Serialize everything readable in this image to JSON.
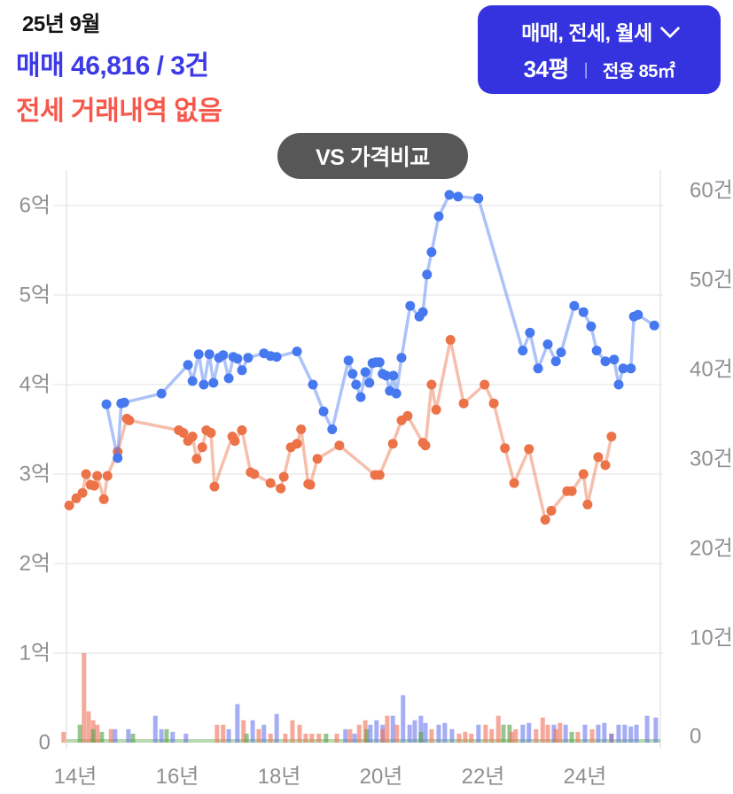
{
  "header": {
    "date": "25년 9월",
    "sale_summary": "매매 46,816 / 3건",
    "jeonse_summary": "전세 거래내역 없음"
  },
  "filter_button": {
    "types_label": "매매, 전세, 월세",
    "pyeong_label": "34평",
    "divider": "ㅣ",
    "exclusive_area_label": "전용 85㎡"
  },
  "compare_button": {
    "label": "VS 가격비교"
  },
  "colors": {
    "sale_accent": "#3c39e6",
    "jeonse_accent": "#f8584c",
    "filter_button_bg": "#3433df",
    "pill_bg": "#575757",
    "grid": "#f0f0f0",
    "axis_text": "#8f8f8f"
  },
  "chart_data": {
    "type": "line+bar",
    "title": "",
    "x_axis": {
      "ticks": [
        [
          2014,
          "14년"
        ],
        [
          2016,
          "16년"
        ],
        [
          2018,
          "18년"
        ],
        [
          2020,
          "20년"
        ],
        [
          2022,
          "22년"
        ],
        [
          2024,
          "24년"
        ]
      ],
      "range": [
        2013.7,
        2025.55
      ]
    },
    "y_left_axis": {
      "unit": "억",
      "ticks": [
        [
          0,
          "0"
        ],
        [
          1,
          "1억"
        ],
        [
          2,
          "2억"
        ],
        [
          3,
          "3억"
        ],
        [
          4,
          "4억"
        ],
        [
          5,
          "5억"
        ],
        [
          6,
          "6억"
        ]
      ],
      "range": [
        0,
        6.4
      ]
    },
    "y_right_axis": {
      "unit": "건",
      "ticks": [
        [
          0,
          "0"
        ],
        [
          10,
          "10건"
        ],
        [
          20,
          "20건"
        ],
        [
          30,
          "30건"
        ],
        [
          40,
          "40건"
        ],
        [
          50,
          "50건"
        ],
        [
          60,
          "60건"
        ]
      ],
      "range": [
        0,
        64
      ]
    },
    "series": [
      {
        "name": "전세",
        "key": "jeonse",
        "unit": "억",
        "marker_color": "#ec7248",
        "line_color": "rgba(236,114,72,0.45)",
        "points": [
          [
            2013.88,
            2.65
          ],
          [
            2014.02,
            2.73
          ],
          [
            2014.14,
            2.79
          ],
          [
            2014.21,
            3.0
          ],
          [
            2014.3,
            2.88
          ],
          [
            2014.37,
            2.87
          ],
          [
            2014.43,
            2.98
          ],
          [
            2014.56,
            2.72
          ],
          [
            2014.63,
            2.98
          ],
          [
            2014.83,
            3.25
          ],
          [
            2015.01,
            3.62
          ],
          [
            2015.06,
            3.6
          ],
          [
            2016.03,
            3.49
          ],
          [
            2016.12,
            3.46
          ],
          [
            2016.21,
            3.37
          ],
          [
            2016.3,
            3.42
          ],
          [
            2016.38,
            3.17
          ],
          [
            2016.49,
            3.3
          ],
          [
            2016.57,
            3.49
          ],
          [
            2016.66,
            3.46
          ],
          [
            2016.73,
            2.86
          ],
          [
            2017.08,
            3.42
          ],
          [
            2017.13,
            3.37
          ],
          [
            2017.27,
            3.49
          ],
          [
            2017.44,
            3.02
          ],
          [
            2017.51,
            3.0
          ],
          [
            2017.83,
            2.9
          ],
          [
            2018.03,
            2.84
          ],
          [
            2018.09,
            2.97
          ],
          [
            2018.23,
            3.3
          ],
          [
            2018.35,
            3.34
          ],
          [
            2018.43,
            3.5
          ],
          [
            2018.57,
            2.89
          ],
          [
            2018.61,
            2.88
          ],
          [
            2018.75,
            3.17
          ],
          [
            2019.18,
            3.32
          ],
          [
            2019.88,
            2.99
          ],
          [
            2019.97,
            2.99
          ],
          [
            2020.23,
            3.34
          ],
          [
            2020.4,
            3.6
          ],
          [
            2020.52,
            3.65
          ],
          [
            2020.82,
            3.35
          ],
          [
            2020.87,
            3.32
          ],
          [
            2020.99,
            4.0
          ],
          [
            2021.08,
            3.72
          ],
          [
            2021.36,
            4.5
          ],
          [
            2021.62,
            3.79
          ],
          [
            2022.03,
            4.0
          ],
          [
            2022.21,
            3.79
          ],
          [
            2022.43,
            3.29
          ],
          [
            2022.61,
            2.9
          ],
          [
            2022.9,
            3.28
          ],
          [
            2023.22,
            2.49
          ],
          [
            2023.34,
            2.59
          ],
          [
            2023.65,
            2.81
          ],
          [
            2023.74,
            2.81
          ],
          [
            2023.97,
            3.0
          ],
          [
            2024.05,
            2.66
          ],
          [
            2024.26,
            3.19
          ],
          [
            2024.4,
            3.1
          ],
          [
            2024.52,
            3.42
          ]
        ]
      },
      {
        "name": "매매",
        "key": "sale",
        "unit": "억",
        "marker_color": "#4678f0",
        "line_color": "rgba(70,122,240,0.45)",
        "points": [
          [
            2014.61,
            3.78
          ],
          [
            2014.83,
            3.18
          ],
          [
            2014.9,
            3.79
          ],
          [
            2014.96,
            3.8
          ],
          [
            2015.69,
            3.9
          ],
          [
            2016.21,
            4.22
          ],
          [
            2016.3,
            4.04
          ],
          [
            2016.42,
            4.34
          ],
          [
            2016.52,
            4.0
          ],
          [
            2016.63,
            4.34
          ],
          [
            2016.71,
            4.02
          ],
          [
            2016.82,
            4.3
          ],
          [
            2016.9,
            4.33
          ],
          [
            2017.01,
            4.07
          ],
          [
            2017.1,
            4.31
          ],
          [
            2017.18,
            4.29
          ],
          [
            2017.27,
            4.16
          ],
          [
            2017.39,
            4.3
          ],
          [
            2017.7,
            4.35
          ],
          [
            2017.83,
            4.32
          ],
          [
            2017.95,
            4.31
          ],
          [
            2018.35,
            4.37
          ],
          [
            2018.66,
            4.0
          ],
          [
            2018.87,
            3.7
          ],
          [
            2019.04,
            3.5
          ],
          [
            2019.36,
            4.27
          ],
          [
            2019.44,
            4.12
          ],
          [
            2019.51,
            4.0
          ],
          [
            2019.6,
            3.86
          ],
          [
            2019.69,
            4.14
          ],
          [
            2019.77,
            4.02
          ],
          [
            2019.83,
            4.24
          ],
          [
            2019.9,
            4.25
          ],
          [
            2019.97,
            4.25
          ],
          [
            2020.03,
            4.12
          ],
          [
            2020.1,
            4.1
          ],
          [
            2020.17,
            3.93
          ],
          [
            2020.24,
            4.1
          ],
          [
            2020.3,
            3.9
          ],
          [
            2020.4,
            4.3
          ],
          [
            2020.57,
            4.88
          ],
          [
            2020.75,
            4.76
          ],
          [
            2020.82,
            4.81
          ],
          [
            2020.9,
            5.23
          ],
          [
            2020.99,
            5.48
          ],
          [
            2021.13,
            5.88
          ],
          [
            2021.34,
            6.12
          ],
          [
            2021.51,
            6.1
          ],
          [
            2021.91,
            6.08
          ],
          [
            2022.78,
            4.38
          ],
          [
            2022.92,
            4.58
          ],
          [
            2023.08,
            4.18
          ],
          [
            2023.27,
            4.45
          ],
          [
            2023.43,
            4.26
          ],
          [
            2023.53,
            4.36
          ],
          [
            2023.79,
            4.88
          ],
          [
            2023.97,
            4.81
          ],
          [
            2024.12,
            4.65
          ],
          [
            2024.23,
            4.38
          ],
          [
            2024.4,
            4.26
          ],
          [
            2024.57,
            4.28
          ],
          [
            2024.66,
            4.0
          ],
          [
            2024.75,
            4.18
          ],
          [
            2024.9,
            4.18
          ],
          [
            2024.96,
            4.76
          ],
          [
            2025.04,
            4.78
          ],
          [
            2025.36,
            4.66
          ]
        ]
      }
    ],
    "volume_bars": {
      "unit": "건",
      "bar_colors": {
        "b": "rgba(100,115,238,0.58)",
        "r": "rgba(240,112,88,0.6)",
        "g": "rgba(88,162,72,0.62)"
      },
      "items": [
        [
          2013.77,
          1.2,
          "r"
        ],
        [
          2014.09,
          2,
          "g"
        ],
        [
          2014.17,
          10,
          "r"
        ],
        [
          2014.26,
          3.5,
          "r"
        ],
        [
          2014.35,
          2.5,
          "r"
        ],
        [
          2014.35,
          1.5,
          "g"
        ],
        [
          2014.43,
          2,
          "r"
        ],
        [
          2014.52,
          1.2,
          "g"
        ],
        [
          2014.7,
          1.5,
          "r"
        ],
        [
          2014.78,
          1.5,
          "b"
        ],
        [
          2015.04,
          1.5,
          "b"
        ],
        [
          2015.13,
          1,
          "g"
        ],
        [
          2015.57,
          3,
          "b"
        ],
        [
          2015.69,
          1.5,
          "b"
        ],
        [
          2015.79,
          1.5,
          "g"
        ],
        [
          2015.91,
          1.2,
          "b"
        ],
        [
          2016.17,
          1,
          "b"
        ],
        [
          2016.78,
          2,
          "r"
        ],
        [
          2016.9,
          2,
          "r"
        ],
        [
          2017.01,
          1.5,
          "b"
        ],
        [
          2017.18,
          4.3,
          "b"
        ],
        [
          2017.3,
          2.5,
          "r"
        ],
        [
          2017.36,
          1,
          "g"
        ],
        [
          2017.48,
          2.5,
          "b"
        ],
        [
          2017.6,
          1.5,
          "r"
        ],
        [
          2017.7,
          2,
          "b"
        ],
        [
          2017.83,
          1,
          "r"
        ],
        [
          2017.95,
          3.2,
          "b"
        ],
        [
          2018.12,
          1,
          "r"
        ],
        [
          2018.26,
          2.5,
          "r"
        ],
        [
          2018.4,
          2,
          "r"
        ],
        [
          2018.52,
          1,
          "r"
        ],
        [
          2018.64,
          1,
          "r"
        ],
        [
          2018.78,
          1,
          "r"
        ],
        [
          2018.92,
          1,
          "g"
        ],
        [
          2019.13,
          1,
          "r"
        ],
        [
          2019.3,
          1.5,
          "b"
        ],
        [
          2019.39,
          1.5,
          "r"
        ],
        [
          2019.48,
          1,
          "b"
        ],
        [
          2019.57,
          2,
          "r"
        ],
        [
          2019.69,
          2.5,
          "r"
        ],
        [
          2019.72,
          1.5,
          "g"
        ],
        [
          2019.79,
          2,
          "b"
        ],
        [
          2019.91,
          2.5,
          "b"
        ],
        [
          2020.03,
          2,
          "b"
        ],
        [
          2020.03,
          1.5,
          "r"
        ],
        [
          2020.12,
          3,
          "r"
        ],
        [
          2020.23,
          3,
          "b"
        ],
        [
          2020.31,
          2,
          "r"
        ],
        [
          2020.43,
          5.3,
          "b"
        ],
        [
          2020.56,
          2,
          "b"
        ],
        [
          2020.66,
          2.5,
          "b"
        ],
        [
          2020.78,
          3,
          "b"
        ],
        [
          2020.78,
          1.2,
          "g"
        ],
        [
          2020.87,
          2.2,
          "b"
        ],
        [
          2020.99,
          1.5,
          "r"
        ],
        [
          2021.13,
          2,
          "b"
        ],
        [
          2021.25,
          2.2,
          "b"
        ],
        [
          2021.39,
          1.5,
          "b"
        ],
        [
          2021.53,
          1,
          "r"
        ],
        [
          2021.65,
          1.2,
          "r"
        ],
        [
          2021.77,
          1,
          "r"
        ],
        [
          2021.91,
          2,
          "b"
        ],
        [
          2022.05,
          2,
          "r"
        ],
        [
          2022.17,
          1.5,
          "r"
        ],
        [
          2022.3,
          3,
          "r"
        ],
        [
          2022.4,
          2,
          "g"
        ],
        [
          2022.52,
          2,
          "g"
        ],
        [
          2022.56,
          1.2,
          "r"
        ],
        [
          2022.64,
          1.5,
          "r"
        ],
        [
          2022.78,
          2,
          "b"
        ],
        [
          2022.9,
          2.2,
          "b"
        ],
        [
          2023.04,
          1.5,
          "r"
        ],
        [
          2023.17,
          2.8,
          "r"
        ],
        [
          2023.27,
          2,
          "r"
        ],
        [
          2023.39,
          2,
          "b"
        ],
        [
          2023.43,
          1.5,
          "r"
        ],
        [
          2023.51,
          2.2,
          "r"
        ],
        [
          2023.62,
          2,
          "b"
        ],
        [
          2023.74,
          1.2,
          "g"
        ],
        [
          2023.86,
          1.2,
          "r"
        ],
        [
          2024.0,
          2,
          "b"
        ],
        [
          2024.14,
          1.5,
          "r"
        ],
        [
          2024.26,
          2,
          "b"
        ],
        [
          2024.38,
          2.2,
          "b"
        ],
        [
          2024.52,
          1,
          "r"
        ],
        [
          2024.52,
          1,
          "b"
        ],
        [
          2024.66,
          2,
          "b"
        ],
        [
          2024.78,
          2,
          "b"
        ],
        [
          2024.9,
          1.8,
          "b"
        ],
        [
          2025.01,
          2,
          "b"
        ],
        [
          2025.22,
          3,
          "b"
        ],
        [
          2025.39,
          2.8,
          "b"
        ]
      ]
    }
  }
}
